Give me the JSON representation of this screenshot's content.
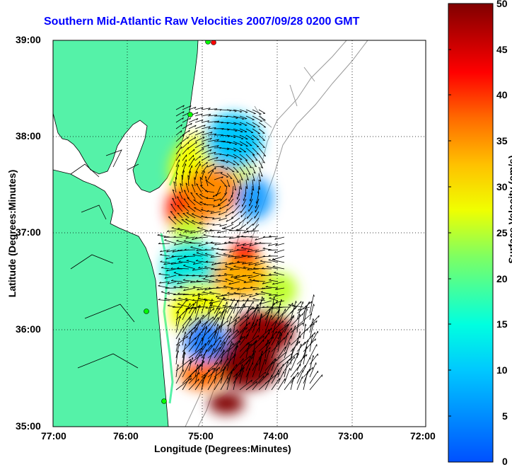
{
  "title": "Southern Mid-Atlantic Raw Velocities 2007/09/28 0200 GMT",
  "xlabel": "Longitude (Degrees:Minutes)",
  "ylabel": "Latitude (Degrees:Minutes)",
  "colorbar_label": "Surface Velocity (cm/s)",
  "colors": {
    "title": "#0000ff",
    "land": "#55f2a8",
    "coast": "#000000",
    "isobath": "#9a9a9a"
  },
  "chart_data": {
    "type": "heatmap",
    "title": "Southern Mid-Atlantic Raw Velocities 2007/09/28 0200 GMT",
    "xlabel": "Longitude (Degrees:Minutes)",
    "ylabel": "Latitude (Degrees:Minutes)",
    "x_ticks": [
      "77:00",
      "76:00",
      "75:00",
      "74:00",
      "73:00",
      "72:00"
    ],
    "y_ticks": [
      "39:00",
      "38:00",
      "37:00",
      "36:00",
      "35:00"
    ],
    "xlim_deg_west": [
      77,
      72
    ],
    "ylim_deg_north": [
      35,
      39
    ],
    "grid": true,
    "colorbar": {
      "min": 0,
      "max": 50,
      "ticks": [
        "50",
        "45",
        "40",
        "35",
        "30",
        "25",
        "20",
        "15",
        "10",
        "5",
        "0"
      ],
      "label": "Surface Velocity (cm/s)"
    },
    "velocity_patches": [
      {
        "lon": -75.15,
        "lat": 37.3,
        "speed": 30
      },
      {
        "lon": -75.55,
        "lat": 37.25,
        "speed": 42
      },
      {
        "lon": -74.95,
        "lat": 37.45,
        "speed": 24
      },
      {
        "lon": -75.0,
        "lat": 37.85,
        "speed": 12
      },
      {
        "lon": -74.6,
        "lat": 37.35,
        "speed": 10
      },
      {
        "lon": -75.4,
        "lat": 36.6,
        "speed": 14
      },
      {
        "lon": -74.75,
        "lat": 36.6,
        "speed": 46
      },
      {
        "lon": -74.45,
        "lat": 36.45,
        "speed": 30
      },
      {
        "lon": -75.15,
        "lat": 36.2,
        "speed": 20
      },
      {
        "lon": -75.0,
        "lat": 35.9,
        "speed": 8
      },
      {
        "lon": -74.35,
        "lat": 35.75,
        "speed": 50
      },
      {
        "lon": -74.65,
        "lat": 35.55,
        "speed": 48
      },
      {
        "lon": -75.3,
        "lat": 35.5,
        "speed": 38
      },
      {
        "lon": -74.6,
        "lat": 35.2,
        "speed": 50
      }
    ]
  }
}
